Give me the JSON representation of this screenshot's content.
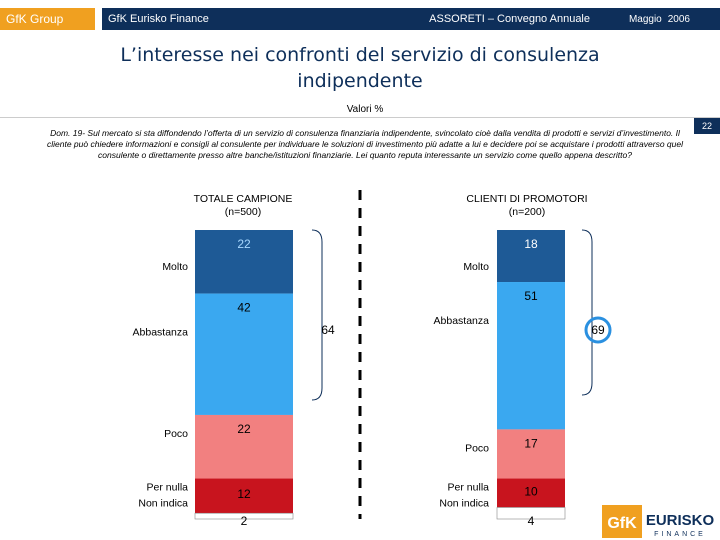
{
  "header": {
    "group": "GfK Group",
    "company": "GfK Eurisko Finance",
    "event": "ASSORETI – Convegno Annuale",
    "month": "Maggio",
    "year": "2006"
  },
  "title_line1": "L’interesse nei confronti del servizio di consulenza",
  "title_line2": "indipendente",
  "subtitle": "Valori %",
  "page_number": "22",
  "question": "Dom. 19- Sul mercato si sta diffondendo l’offerta di un servizio di consulenza finanziaria indipendente, svincolato cioè dalla vendita di prodotti e servizi d’investimento. Il cliente può chiedere informazioni e consigli al consulente per individuare le soluzioni di investimento più adatte a lui e decidere poi se acquistare i prodotti attraverso quel consulente o direttamente presso altre banche/istituzioni finanziarie. Lei quanto reputa interessante un servizio come quello appena descritto?",
  "logo": {
    "brand": "GfK",
    "name": "EURISKO",
    "sub": "FINANCE"
  },
  "colors": {
    "navy": "#0e2f5a",
    "orange": "#f0a020"
  },
  "chart_data": {
    "type": "bar",
    "stacked": true,
    "categories": [
      "Molto",
      "Abbastanza",
      "Poco",
      "Per nulla",
      "Non indica"
    ],
    "category_labels": [
      "Molto",
      "Abbastanza",
      "Poco",
      "Per nulla\nNon indica"
    ],
    "colors": [
      "#1e5a96",
      "#3aa8f0",
      "#f28080",
      "#c8141e",
      "#ffffff"
    ],
    "series": [
      {
        "name": "TOTALE CAMPIONE",
        "sample": "(n=500)",
        "values": [
          22,
          42,
          22,
          12,
          2
        ],
        "bracket_total": 64
      },
      {
        "name": "CLIENTI DI PROMOTORI",
        "sample": "(n=200)",
        "values": [
          18,
          51,
          17,
          10,
          4
        ],
        "bracket_total": 69
      }
    ],
    "ylim": [
      0,
      100
    ]
  }
}
